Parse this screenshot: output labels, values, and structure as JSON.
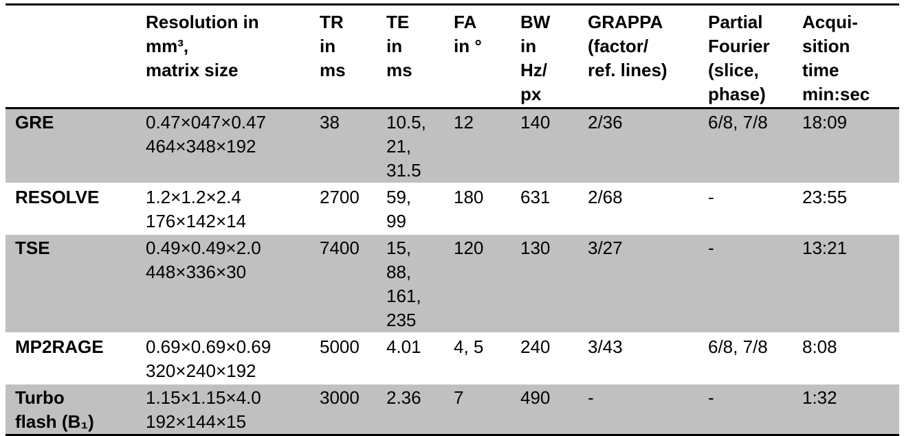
{
  "table": {
    "header": [
      [
        ""
      ],
      [
        "Resolution in",
        "mm³,",
        "matrix size"
      ],
      [
        "TR",
        "in",
        "ms"
      ],
      [
        "TE",
        "in",
        "ms"
      ],
      [
        "FA",
        "in °"
      ],
      [
        "BW",
        "in",
        "Hz/",
        "px"
      ],
      [
        "GRAPPA",
        "(factor/",
        "ref. lines)"
      ],
      [
        "Partial",
        "Fourier",
        "(slice,",
        "phase)"
      ],
      [
        "Acqui-",
        "sition",
        "time",
        "min:sec"
      ]
    ],
    "rows": [
      [
        [
          "GRE"
        ],
        [
          "0.47×047×0.47",
          "464×348×192"
        ],
        [
          "38"
        ],
        [
          "10.5,",
          "21,",
          "31.5"
        ],
        [
          "12"
        ],
        [
          "140"
        ],
        [
          "2/36"
        ],
        [
          "6/8, 7/8"
        ],
        [
          "18:09"
        ]
      ],
      [
        [
          "RESOLVE"
        ],
        [
          "1.2×1.2×2.4",
          "176×142×14"
        ],
        [
          "2700"
        ],
        [
          "59,",
          "99"
        ],
        [
          "180"
        ],
        [
          "631"
        ],
        [
          "2/68"
        ],
        [
          "-"
        ],
        [
          "23:55"
        ]
      ],
      [
        [
          "TSE"
        ],
        [
          "0.49×0.49×2.0",
          "448×336×30"
        ],
        [
          "7400"
        ],
        [
          "15,",
          "88,",
          "161,",
          "235"
        ],
        [
          "120"
        ],
        [
          "130"
        ],
        [
          "3/27"
        ],
        [
          "-"
        ],
        [
          "13:21"
        ]
      ],
      [
        [
          "MP2RAGE"
        ],
        [
          "0.69×0.69×0.69",
          "320×240×192"
        ],
        [
          "5000"
        ],
        [
          "4.01"
        ],
        [
          "4, 5"
        ],
        [
          "240"
        ],
        [
          "3/43"
        ],
        [
          "6/8, 7/8"
        ],
        [
          "8:08"
        ]
      ],
      [
        [
          "Turbo",
          "flash (B₁)"
        ],
        [
          "1.15×1.15×4.0",
          "192×144×15"
        ],
        [
          "3000"
        ],
        [
          "2.36"
        ],
        [
          "7"
        ],
        [
          "490"
        ],
        [
          "-"
        ],
        [
          "-"
        ],
        [
          "1:32"
        ]
      ]
    ]
  }
}
